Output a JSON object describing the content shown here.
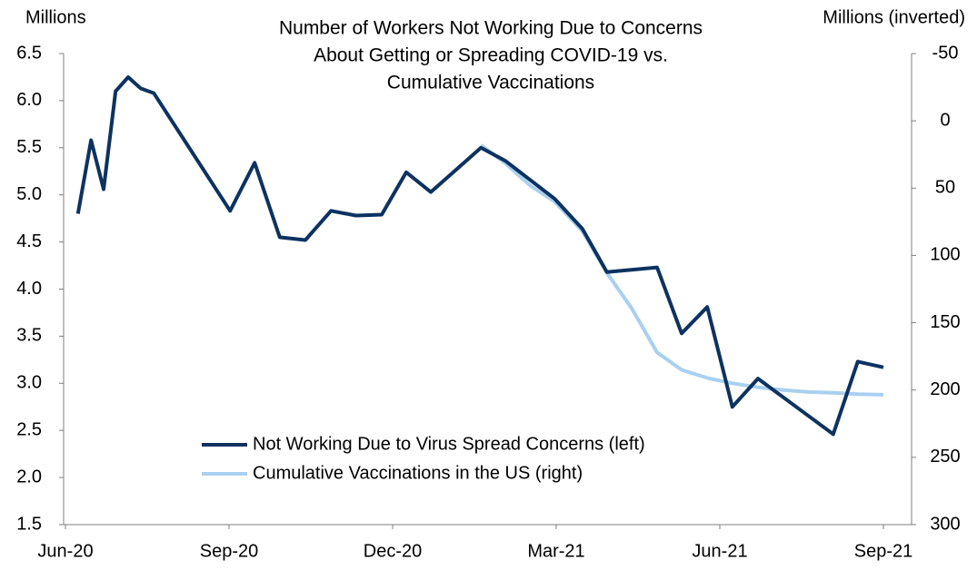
{
  "chart_data": {
    "type": "line",
    "title": [
      "Number of Workers Not Working Due to Concerns",
      "About Getting or Spreading COVID-19 vs.",
      "Cumulative Vaccinations"
    ],
    "ylabel": "Millions",
    "y2label": "Millions (inverted)",
    "xlim": [
      0,
      15.5
    ],
    "xticks": [
      {
        "value": 0,
        "label": "Jun-20"
      },
      {
        "value": 3,
        "label": "Sep-20"
      },
      {
        "value": 6,
        "label": "Dec-20"
      },
      {
        "value": 9,
        "label": "Mar-21"
      },
      {
        "value": 12,
        "label": "Jun-21"
      },
      {
        "value": 15,
        "label": "Sep-21"
      }
    ],
    "ylim": [
      1.5,
      6.5
    ],
    "yticks": [
      1.5,
      {
        "value": 2,
        "label": "2.0"
      },
      2.5,
      {
        "value": 3,
        "label": "3.0"
      },
      3.5,
      {
        "value": 4,
        "label": "4.0"
      },
      4.5,
      {
        "value": 5,
        "label": "5.0"
      },
      5.5,
      {
        "value": 6,
        "label": "6.0"
      },
      6.5
    ],
    "y2lim": [
      -50,
      300
    ],
    "y2_inverted": true,
    "y2ticks": [
      -50,
      0,
      50,
      100,
      150,
      200,
      250,
      300
    ],
    "legend": "bottom-center",
    "series": [
      {
        "name": "Not Working Due to Virus Spread Concerns (left)",
        "color": "#0d3260",
        "x": [
          0.23,
          0.47,
          0.7,
          0.92,
          1.15,
          1.38,
          1.62,
          3.02,
          3.47,
          3.93,
          4.4,
          4.87,
          5.33,
          5.8,
          6.25,
          6.7,
          7.62,
          8.07,
          8.97,
          9.48,
          9.93,
          10.85,
          11.3,
          11.77,
          12.23,
          12.7,
          14.08,
          14.53,
          15.0
        ],
        "values": [
          4.8,
          5.58,
          5.06,
          6.1,
          6.25,
          6.13,
          6.08,
          4.83,
          5.34,
          4.55,
          4.52,
          4.83,
          4.78,
          4.79,
          5.24,
          5.03,
          5.5,
          5.36,
          4.96,
          4.64,
          4.18,
          4.23,
          3.53,
          3.81,
          2.75,
          3.05,
          2.46,
          3.23,
          3.17
        ]
      },
      {
        "name": "Cumulative Vaccinations in the US (right)",
        "color": "#a9d0f0",
        "axis": "y2",
        "x": [
          7.62,
          8.07,
          8.52,
          8.97,
          9.48,
          9.93,
          10.38,
          10.85,
          11.3,
          11.77,
          12.23,
          12.7,
          13.17,
          13.62,
          14.08,
          14.53,
          15.0
        ],
        "values": [
          18,
          31.6,
          48,
          60,
          82,
          113,
          139,
          172,
          185,
          191,
          195,
          198,
          200,
          201.5,
          202,
          203,
          203.5
        ]
      }
    ]
  }
}
